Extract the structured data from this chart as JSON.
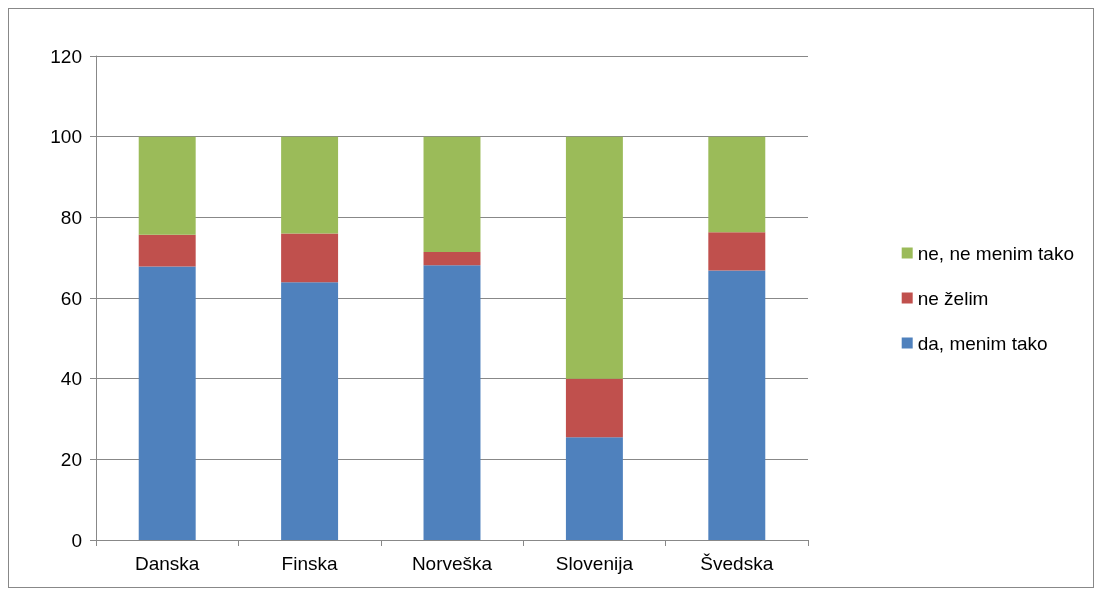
{
  "chart_data": {
    "type": "bar",
    "stacked": true,
    "categories": [
      "Danska",
      "Finska",
      "Norveška",
      "Slovenija",
      "Švedska"
    ],
    "series": [
      {
        "name": "da, menim tako",
        "color": "#4f81bd",
        "values": [
          67.8,
          63.9,
          68.1,
          25.5,
          66.8
        ]
      },
      {
        "name": "ne želim",
        "color": "#c0504d",
        "values": [
          7.9,
          12.1,
          3.3,
          14.5,
          9.5
        ]
      },
      {
        "name": "ne, ne menim tako",
        "color": "#9bbb59",
        "values": [
          24.3,
          24.0,
          28.6,
          60.0,
          23.7
        ]
      }
    ],
    "ylim": [
      0,
      120
    ],
    "yticks": [
      0,
      20,
      40,
      60,
      80,
      100,
      120
    ],
    "grid": "y",
    "legend": "right"
  }
}
